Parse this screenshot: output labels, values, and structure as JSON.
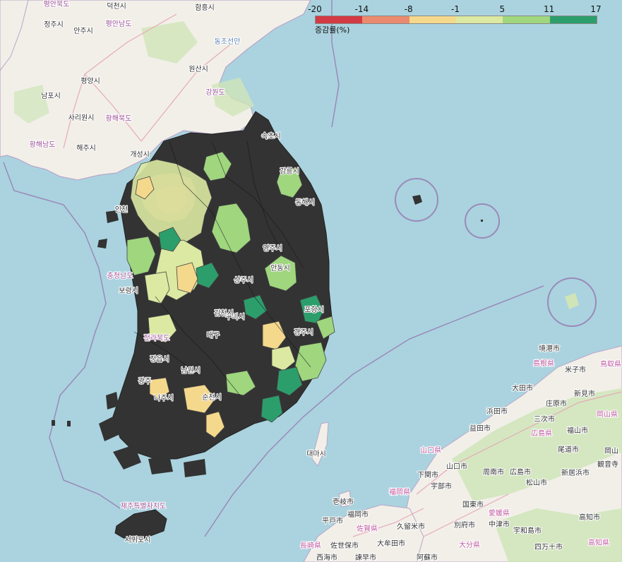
{
  "map_type": "choropleth",
  "legend": {
    "title": "증감률(%)",
    "ticks": [
      "-20",
      "-14",
      "-8",
      "-1",
      "5",
      "11",
      "17"
    ],
    "colors": [
      "#d23a44",
      "#ea8a6e",
      "#f4d88c",
      "#dbe9a2",
      "#9fd67e",
      "#2c9e6c"
    ]
  },
  "basemap_colors": {
    "sea": "#aad3df",
    "land": "#f2efe9",
    "no_data_region": "#333333"
  },
  "place_labels": [
    {
      "name": "평안북도",
      "kind": "prov"
    },
    {
      "name": "덕천시",
      "kind": "city"
    },
    {
      "name": "함흥시",
      "kind": "city"
    },
    {
      "name": "정주시",
      "kind": "city"
    },
    {
      "name": "안주시",
      "kind": "city"
    },
    {
      "name": "평안남도",
      "kind": "prov"
    },
    {
      "name": "동조선만",
      "kind": "sea"
    },
    {
      "name": "원산시",
      "kind": "city"
    },
    {
      "name": "평양시",
      "kind": "city"
    },
    {
      "name": "남포시",
      "kind": "city"
    },
    {
      "name": "강원도",
      "kind": "prov"
    },
    {
      "name": "사리원시",
      "kind": "city"
    },
    {
      "name": "황해북도",
      "kind": "prov"
    },
    {
      "name": "황해남도",
      "kind": "prov"
    },
    {
      "name": "해주시",
      "kind": "city"
    },
    {
      "name": "개성시",
      "kind": "city"
    },
    {
      "name": "인천",
      "kind": "city"
    },
    {
      "name": "속초시",
      "kind": "city"
    },
    {
      "name": "강릉시",
      "kind": "city"
    },
    {
      "name": "동해시",
      "kind": "city"
    },
    {
      "name": "영주시",
      "kind": "city"
    },
    {
      "name": "안동시",
      "kind": "city"
    },
    {
      "name": "충청남도",
      "kind": "prov"
    },
    {
      "name": "보령시",
      "kind": "city"
    },
    {
      "name": "상주시",
      "kind": "city"
    },
    {
      "name": "포항시",
      "kind": "city"
    },
    {
      "name": "구미시",
      "kind": "city"
    },
    {
      "name": "김천시",
      "kind": "city"
    },
    {
      "name": "대구",
      "kind": "city"
    },
    {
      "name": "전라북도",
      "kind": "prov"
    },
    {
      "name": "경주시",
      "kind": "city"
    },
    {
      "name": "정읍시",
      "kind": "city"
    },
    {
      "name": "남원시",
      "kind": "city"
    },
    {
      "name": "광주",
      "kind": "city"
    },
    {
      "name": "나주시",
      "kind": "city"
    },
    {
      "name": "순천시",
      "kind": "city"
    },
    {
      "name": "제주특별자치도",
      "kind": "prov"
    },
    {
      "name": "서귀포시",
      "kind": "city"
    },
    {
      "name": "대마시",
      "kind": "city"
    },
    {
      "name": "境港市",
      "kind": "jp"
    },
    {
      "name": "島根県",
      "kind": "jpprov"
    },
    {
      "name": "米子市",
      "kind": "jp"
    },
    {
      "name": "鳥取県",
      "kind": "jpprov"
    },
    {
      "name": "大田市",
      "kind": "jp"
    },
    {
      "name": "新見市",
      "kind": "jp"
    },
    {
      "name": "庄原市",
      "kind": "jp"
    },
    {
      "name": "浜田市",
      "kind": "jp"
    },
    {
      "name": "岡山県",
      "kind": "jpprov"
    },
    {
      "name": "三次市",
      "kind": "jp"
    },
    {
      "name": "益田市",
      "kind": "jp"
    },
    {
      "name": "福山市",
      "kind": "jp"
    },
    {
      "name": "広島県",
      "kind": "jpprov"
    },
    {
      "name": "山口県",
      "kind": "jpprov"
    },
    {
      "name": "尾道市",
      "kind": "jp"
    },
    {
      "name": "岡山",
      "kind": "jp"
    },
    {
      "name": "山口市",
      "kind": "jp"
    },
    {
      "name": "広島市",
      "kind": "jp"
    },
    {
      "name": "下関市",
      "kind": "jp"
    },
    {
      "name": "周南市",
      "kind": "jp"
    },
    {
      "name": "新居浜市",
      "kind": "jp"
    },
    {
      "name": "観音寺",
      "kind": "jp"
    },
    {
      "name": "宇部市",
      "kind": "jp"
    },
    {
      "name": "松山市",
      "kind": "jp"
    },
    {
      "name": "壱岐市",
      "kind": "jp"
    },
    {
      "name": "福岡県",
      "kind": "jpprov"
    },
    {
      "name": "国東市",
      "kind": "jp"
    },
    {
      "name": "愛媛県",
      "kind": "jpprov"
    },
    {
      "name": "福岡市",
      "kind": "jp"
    },
    {
      "name": "中津市",
      "kind": "jp"
    },
    {
      "name": "平戸市",
      "kind": "jp"
    },
    {
      "name": "宇和島市",
      "kind": "jp"
    },
    {
      "name": "高知市",
      "kind": "jp"
    },
    {
      "name": "佐賀県",
      "kind": "jpprov"
    },
    {
      "name": "久留米市",
      "kind": "jp"
    },
    {
      "name": "別府市",
      "kind": "jp"
    },
    {
      "name": "長崎県",
      "kind": "jpprov"
    },
    {
      "name": "佐世保市",
      "kind": "jp"
    },
    {
      "name": "大牟田市",
      "kind": "jp"
    },
    {
      "name": "大分県",
      "kind": "jpprov"
    },
    {
      "name": "四万十市",
      "kind": "jp"
    },
    {
      "name": "高知県",
      "kind": "jpprov"
    },
    {
      "name": "西海市",
      "kind": "jp"
    },
    {
      "name": "諫早市",
      "kind": "jp"
    },
    {
      "name": "阿蘇市",
      "kind": "jp"
    }
  ]
}
